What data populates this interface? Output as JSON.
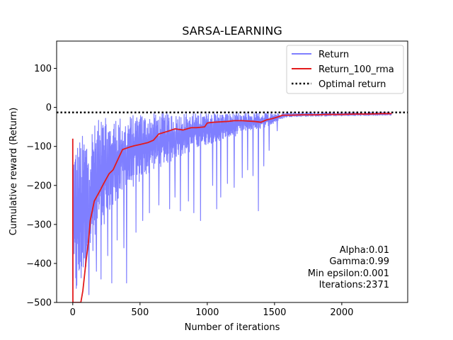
{
  "chart_data": {
    "type": "line",
    "title": "SARSA-LEARNING",
    "xlabel": "Number of iterations",
    "ylabel": "Cumulative reward (Return)",
    "xlim": [
      -120,
      2490
    ],
    "ylim": [
      -500,
      170
    ],
    "xticks": [
      0,
      500,
      1000,
      1500,
      2000
    ],
    "yticks": [
      100,
      0,
      -100,
      -200,
      -300,
      -400,
      -500
    ],
    "xtick_labels": [
      "0",
      "500",
      "1000",
      "1500",
      "2000"
    ],
    "ytick_labels": [
      "100",
      "0",
      "−100",
      "−200",
      "−300",
      "−400",
      "−500"
    ],
    "grid": false,
    "legend_position": "top-right",
    "series": [
      {
        "name": "Return",
        "color": "#7f7fff",
        "style": "noisy",
        "lower_envelope": [
          [
            0,
            -500
          ],
          [
            30,
            -500
          ],
          [
            60,
            -470
          ],
          [
            100,
            -420
          ],
          [
            150,
            -370
          ],
          [
            200,
            -320
          ],
          [
            300,
            -260
          ],
          [
            400,
            -220
          ],
          [
            500,
            -190
          ],
          [
            600,
            -160
          ],
          [
            700,
            -145
          ],
          [
            800,
            -125
          ],
          [
            900,
            -110
          ],
          [
            1000,
            -95
          ],
          [
            1100,
            -85
          ],
          [
            1200,
            -75
          ],
          [
            1300,
            -60
          ],
          [
            1400,
            -55
          ],
          [
            1500,
            -40
          ],
          [
            1550,
            -30
          ],
          [
            1600,
            -24
          ],
          [
            2000,
            -22
          ],
          [
            2371,
            -20
          ]
        ],
        "upper_envelope": [
          [
            0,
            -90
          ],
          [
            40,
            -80
          ],
          [
            100,
            -60
          ],
          [
            200,
            -30
          ],
          [
            400,
            -20
          ],
          [
            600,
            -15
          ],
          [
            1000,
            -15
          ],
          [
            2371,
            -13
          ]
        ],
        "spikes": [
          [
            120,
            -480
          ],
          [
            175,
            -420
          ],
          [
            210,
            -440
          ],
          [
            260,
            -380
          ],
          [
            290,
            -450
          ],
          [
            330,
            -340
          ],
          [
            380,
            -360
          ],
          [
            400,
            -450
          ],
          [
            470,
            -320
          ],
          [
            520,
            -290
          ],
          [
            570,
            -270
          ],
          [
            640,
            -250
          ],
          [
            720,
            -260
          ],
          [
            760,
            -230
          ],
          [
            800,
            -265
          ],
          [
            860,
            -240
          ],
          [
            900,
            -270
          ],
          [
            950,
            -290
          ],
          [
            1040,
            -200
          ],
          [
            1070,
            -260
          ],
          [
            1100,
            -230
          ],
          [
            1150,
            -195
          ],
          [
            1200,
            -205
          ],
          [
            1260,
            -180
          ],
          [
            1300,
            -160
          ],
          [
            1340,
            -175
          ],
          [
            1380,
            -265
          ],
          [
            1420,
            -150
          ],
          [
            1460,
            -110
          ],
          [
            1520,
            -60
          ]
        ]
      },
      {
        "name": "Return_100_rma",
        "color": "#e31a1c",
        "points": [
          [
            0,
            -80
          ],
          [
            1,
            -500
          ],
          [
            60,
            -500
          ],
          [
            75,
            -470
          ],
          [
            100,
            -390
          ],
          [
            115,
            -350
          ],
          [
            130,
            -290
          ],
          [
            160,
            -240
          ],
          [
            200,
            -215
          ],
          [
            230,
            -195
          ],
          [
            270,
            -170
          ],
          [
            300,
            -160
          ],
          [
            340,
            -130
          ],
          [
            370,
            -108
          ],
          [
            420,
            -102
          ],
          [
            460,
            -98
          ],
          [
            500,
            -95
          ],
          [
            560,
            -90
          ],
          [
            600,
            -84
          ],
          [
            640,
            -68
          ],
          [
            700,
            -62
          ],
          [
            760,
            -55
          ],
          [
            820,
            -58
          ],
          [
            880,
            -52
          ],
          [
            920,
            -52
          ],
          [
            980,
            -50
          ],
          [
            1000,
            -40
          ],
          [
            1050,
            -38
          ],
          [
            1100,
            -37
          ],
          [
            1150,
            -36
          ],
          [
            1200,
            -34
          ],
          [
            1260,
            -34
          ],
          [
            1300,
            -35
          ],
          [
            1350,
            -36
          ],
          [
            1400,
            -38
          ],
          [
            1440,
            -32
          ],
          [
            1480,
            -29
          ],
          [
            1520,
            -25
          ],
          [
            1560,
            -20
          ],
          [
            1620,
            -20
          ],
          [
            1700,
            -19
          ],
          [
            1800,
            -19
          ],
          [
            1900,
            -18
          ],
          [
            2000,
            -18
          ],
          [
            2100,
            -17
          ],
          [
            2200,
            -17
          ],
          [
            2300,
            -16
          ],
          [
            2371,
            -16
          ]
        ]
      },
      {
        "name": "Optimal return",
        "color": "#000000",
        "style": "dotted",
        "y": -13
      }
    ],
    "annotations": [
      "Alpha:0.01",
      "Gamma:0.99",
      "Min epsilon:0.001",
      "Iterations:2371"
    ]
  }
}
